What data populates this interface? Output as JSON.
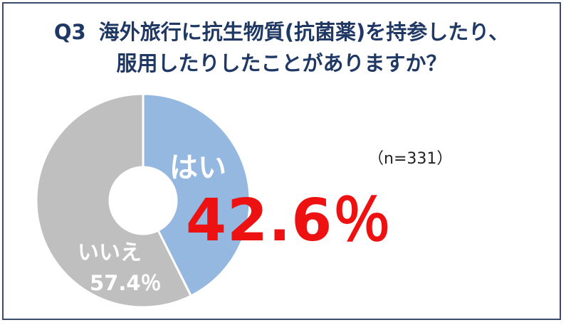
{
  "title": {
    "q_number": "Q3",
    "line1": "海外旅行に抗生物質(抗菌薬)を持参したり、",
    "line2": "服用したりしたことがありますか？"
  },
  "sample_size": "（n=331）",
  "colors": {
    "yes": "#95b8e0",
    "no": "#bfbfbf",
    "highlight": "#ee1111",
    "title": "#1f3864"
  },
  "chart_data": {
    "type": "pie",
    "categories": [
      "はい",
      "いいえ"
    ],
    "values": [
      42.6,
      57.4
    ],
    "value_labels": [
      "42.6％",
      "57.4％"
    ],
    "unit": "%",
    "title": "Q3 海外旅行に抗生物質(抗菌薬)を持参したり、服用したりしたことがありますか？",
    "subtitle": "（n=331）",
    "legend": "none"
  }
}
